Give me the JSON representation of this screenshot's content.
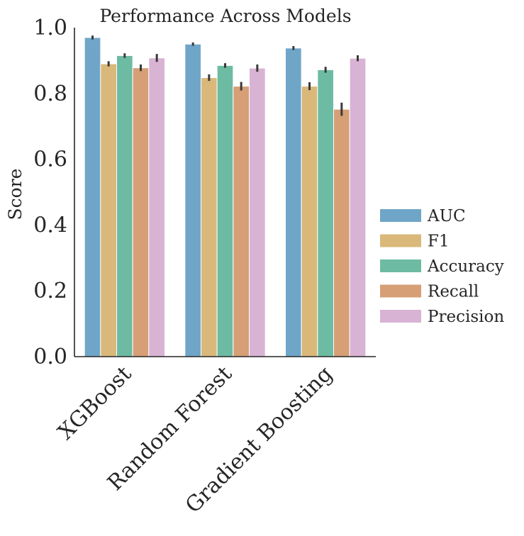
{
  "chart_data": {
    "type": "bar",
    "title": "Performance Across Models",
    "xlabel": "",
    "ylabel": "Score",
    "ylim": [
      0,
      1.0
    ],
    "yticks": [
      "0.0",
      "0.2",
      "0.4",
      "0.6",
      "0.8",
      "1.0"
    ],
    "categories": [
      "XGBoost",
      "Random Forest",
      "Gradient Boosting"
    ],
    "series": [
      {
        "name": "AUC",
        "color": "#6fa6c8",
        "values": [
          0.97,
          0.95,
          0.938
        ],
        "err": [
          0.006,
          0.005,
          0.006
        ]
      },
      {
        "name": "F1",
        "color": "#d9b87a",
        "values": [
          0.89,
          0.848,
          0.822
        ],
        "err": [
          0.008,
          0.01,
          0.012
        ]
      },
      {
        "name": "Accuracy",
        "color": "#6dbba2",
        "values": [
          0.915,
          0.885,
          0.872
        ],
        "err": [
          0.007,
          0.007,
          0.009
        ]
      },
      {
        "name": "Recall",
        "color": "#d69f76",
        "values": [
          0.878,
          0.822,
          0.752
        ],
        "err": [
          0.01,
          0.013,
          0.02
        ]
      },
      {
        "name": "Precision",
        "color": "#d8b3d4",
        "values": [
          0.908,
          0.877,
          0.907
        ],
        "err": [
          0.012,
          0.011,
          0.009
        ]
      }
    ],
    "legend_position": "right",
    "grid": false,
    "error_bars": true
  }
}
